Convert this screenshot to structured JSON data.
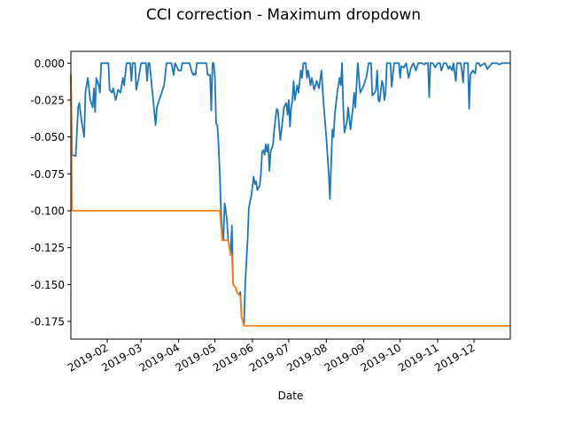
{
  "chart_data": {
    "type": "line",
    "title": "CCI correction - Maximum dropdown",
    "xlabel": "Date",
    "ylabel": "",
    "x_range": [
      "2019-01-02",
      "2019-12-31"
    ],
    "ylim": [
      -0.187,
      0.008
    ],
    "x_ticks": [
      "2019-02",
      "2019-03",
      "2019-04",
      "2019-05",
      "2019-06",
      "2019-07",
      "2019-08",
      "2019-09",
      "2019-10",
      "2019-11",
      "2019-12"
    ],
    "y_ticks": [
      "0.000",
      "-0.025",
      "-0.050",
      "-0.075",
      "-0.100",
      "-0.125",
      "-0.150",
      "-0.175"
    ],
    "grid": false,
    "colors": {
      "drawdown": "#1f77b4",
      "max_drawdown": "#ff7f0e"
    },
    "series": [
      {
        "key": "drawdown",
        "points": [
          [
            "2019-01-02",
            -0.008
          ],
          [
            "2019-01-03",
            -0.062
          ],
          [
            "2019-01-06",
            -0.063
          ],
          [
            "2019-01-08",
            -0.03
          ],
          [
            "2019-01-09",
            -0.027
          ],
          [
            "2019-01-11",
            -0.04
          ],
          [
            "2019-01-13",
            -0.05
          ],
          [
            "2019-01-14",
            -0.02
          ],
          [
            "2019-01-16",
            -0.01
          ],
          [
            "2019-01-18",
            -0.025
          ],
          [
            "2019-01-20",
            -0.03
          ],
          [
            "2019-01-21",
            -0.017
          ],
          [
            "2019-01-22",
            -0.033
          ],
          [
            "2019-01-23",
            -0.01
          ],
          [
            "2019-01-25",
            -0.015
          ],
          [
            "2019-01-26",
            -0.02
          ],
          [
            "2019-01-27",
            0.0
          ],
          [
            "2019-01-30",
            0.0
          ],
          [
            "2019-02-02",
            0.0
          ],
          [
            "2019-02-03",
            -0.018
          ],
          [
            "2019-02-05",
            -0.02
          ],
          [
            "2019-02-06",
            -0.017
          ],
          [
            "2019-02-08",
            -0.025
          ],
          [
            "2019-02-10",
            -0.018
          ],
          [
            "2019-02-12",
            -0.02
          ],
          [
            "2019-02-14",
            -0.01
          ],
          [
            "2019-02-15",
            -0.015
          ],
          [
            "2019-02-17",
            0.0
          ],
          [
            "2019-02-20",
            0.0
          ],
          [
            "2019-02-21",
            -0.012
          ],
          [
            "2019-02-22",
            0.0
          ],
          [
            "2019-02-24",
            0.0
          ],
          [
            "2019-02-25",
            -0.018
          ],
          [
            "2019-02-27",
            -0.01
          ],
          [
            "2019-03-01",
            0.0
          ],
          [
            "2019-03-05",
            0.0
          ],
          [
            "2019-03-06",
            -0.012
          ],
          [
            "2019-03-07",
            0.0
          ],
          [
            "2019-03-08",
            0.0
          ],
          [
            "2019-03-11",
            -0.025
          ],
          [
            "2019-03-13",
            -0.042
          ],
          [
            "2019-03-14",
            -0.03
          ],
          [
            "2019-03-16",
            -0.025
          ],
          [
            "2019-03-18",
            -0.02
          ],
          [
            "2019-03-20",
            -0.015
          ],
          [
            "2019-03-22",
            0.0
          ],
          [
            "2019-03-26",
            0.0
          ],
          [
            "2019-03-28",
            -0.008
          ],
          [
            "2019-03-29",
            0.0
          ],
          [
            "2019-04-01",
            -0.005
          ],
          [
            "2019-04-03",
            -0.005
          ],
          [
            "2019-04-04",
            0.0
          ],
          [
            "2019-04-10",
            0.0
          ],
          [
            "2019-04-12",
            -0.006
          ],
          [
            "2019-04-13",
            -0.008
          ],
          [
            "2019-04-14",
            -0.007
          ],
          [
            "2019-04-15",
            -0.008
          ],
          [
            "2019-04-16",
            0.0
          ],
          [
            "2019-04-20",
            0.0
          ],
          [
            "2019-04-24",
            0.0
          ],
          [
            "2019-04-25",
            -0.008
          ],
          [
            "2019-04-27",
            -0.008
          ],
          [
            "2019-04-28",
            -0.032
          ],
          [
            "2019-04-29",
            0.0
          ],
          [
            "2019-04-30",
            0.0
          ],
          [
            "2019-05-01",
            -0.01
          ],
          [
            "2019-05-02",
            -0.041
          ],
          [
            "2019-05-03",
            -0.042
          ],
          [
            "2019-05-04",
            -0.055
          ],
          [
            "2019-05-05",
            -0.075
          ],
          [
            "2019-05-06",
            -0.1
          ],
          [
            "2019-05-07",
            -0.115
          ],
          [
            "2019-05-08",
            -0.12
          ],
          [
            "2019-05-09",
            -0.095
          ],
          [
            "2019-05-10",
            -0.1
          ],
          [
            "2019-05-11",
            -0.107
          ],
          [
            "2019-05-12",
            -0.12
          ],
          [
            "2019-05-14",
            -0.13
          ],
          [
            "2019-05-15",
            -0.11
          ],
          [
            "2019-05-16",
            -0.15
          ],
          [
            "2019-05-18",
            -0.152
          ],
          [
            "2019-05-19",
            -0.155
          ],
          [
            "2019-05-21",
            -0.157
          ],
          [
            "2019-05-22",
            -0.155
          ],
          [
            "2019-05-23",
            -0.172
          ],
          [
            "2019-05-25",
            -0.178
          ],
          [
            "2019-05-26",
            -0.15
          ],
          [
            "2019-05-28",
            -0.12
          ],
          [
            "2019-05-29",
            -0.098
          ],
          [
            "2019-05-31",
            -0.09
          ],
          [
            "2019-06-02",
            -0.077
          ],
          [
            "2019-06-03",
            -0.082
          ],
          [
            "2019-06-04",
            -0.08
          ],
          [
            "2019-06-05",
            -0.086
          ],
          [
            "2019-06-07",
            -0.083
          ],
          [
            "2019-06-08",
            -0.075
          ],
          [
            "2019-06-09",
            -0.06
          ],
          [
            "2019-06-10",
            -0.059
          ],
          [
            "2019-06-11",
            -0.062
          ],
          [
            "2019-06-12",
            -0.055
          ],
          [
            "2019-06-13",
            -0.06
          ],
          [
            "2019-06-14",
            -0.055
          ],
          [
            "2019-06-15",
            -0.073
          ],
          [
            "2019-06-16",
            -0.06
          ],
          [
            "2019-06-18",
            -0.055
          ],
          [
            "2019-06-19",
            -0.045
          ],
          [
            "2019-06-21",
            -0.031
          ],
          [
            "2019-06-22",
            -0.032
          ],
          [
            "2019-06-24",
            -0.052
          ],
          [
            "2019-06-25",
            -0.045
          ],
          [
            "2019-06-26",
            -0.038
          ],
          [
            "2019-06-27",
            -0.03
          ],
          [
            "2019-06-29",
            -0.027
          ],
          [
            "2019-06-30",
            -0.035
          ],
          [
            "2019-07-01",
            -0.025
          ],
          [
            "2019-07-02",
            -0.043
          ],
          [
            "2019-07-03",
            -0.03
          ],
          [
            "2019-07-04",
            -0.025
          ],
          [
            "2019-07-05",
            -0.012
          ],
          [
            "2019-07-06",
            -0.025
          ],
          [
            "2019-07-08",
            -0.015
          ],
          [
            "2019-07-09",
            -0.02
          ],
          [
            "2019-07-11",
            -0.005
          ],
          [
            "2019-07-12",
            -0.01
          ],
          [
            "2019-07-13",
            0.0
          ],
          [
            "2019-07-15",
            0.0
          ],
          [
            "2019-07-16",
            -0.01
          ],
          [
            "2019-07-17",
            -0.005
          ],
          [
            "2019-07-19",
            -0.015
          ],
          [
            "2019-07-20",
            -0.01
          ],
          [
            "2019-07-22",
            -0.018
          ],
          [
            "2019-07-24",
            -0.012
          ],
          [
            "2019-07-26",
            -0.017
          ],
          [
            "2019-07-28",
            -0.005
          ],
          [
            "2019-07-30",
            -0.03
          ],
          [
            "2019-08-01",
            -0.05
          ],
          [
            "2019-08-03",
            -0.075
          ],
          [
            "2019-08-04",
            -0.092
          ],
          [
            "2019-08-06",
            -0.045
          ],
          [
            "2019-08-07",
            -0.05
          ],
          [
            "2019-08-08",
            -0.035
          ],
          [
            "2019-08-10",
            -0.02
          ],
          [
            "2019-08-12",
            -0.01
          ],
          [
            "2019-08-13",
            -0.015
          ],
          [
            "2019-08-14",
            0.0
          ],
          [
            "2019-08-15",
            -0.03
          ],
          [
            "2019-08-16",
            -0.047
          ],
          [
            "2019-08-18",
            -0.04
          ],
          [
            "2019-08-19",
            -0.03
          ],
          [
            "2019-08-21",
            -0.045
          ],
          [
            "2019-08-23",
            -0.03
          ],
          [
            "2019-08-24",
            -0.02
          ],
          [
            "2019-08-25",
            -0.03
          ],
          [
            "2019-08-27",
            0.0
          ],
          [
            "2019-08-29",
            -0.02
          ],
          [
            "2019-09-01",
            -0.015
          ],
          [
            "2019-09-02",
            -0.012
          ],
          [
            "2019-09-03",
            -0.01
          ],
          [
            "2019-09-05",
            0.0
          ],
          [
            "2019-09-07",
            0.0
          ],
          [
            "2019-09-08",
            -0.022
          ],
          [
            "2019-09-10",
            -0.02
          ],
          [
            "2019-09-11",
            -0.018
          ],
          [
            "2019-09-12",
            -0.005
          ],
          [
            "2019-09-13",
            -0.025
          ],
          [
            "2019-09-14",
            -0.026
          ],
          [
            "2019-09-16",
            -0.012
          ],
          [
            "2019-09-17",
            -0.015
          ],
          [
            "2019-09-18",
            -0.025
          ],
          [
            "2019-09-19",
            -0.02
          ],
          [
            "2019-09-20",
            0.0
          ],
          [
            "2019-09-23",
            0.0
          ],
          [
            "2019-09-24",
            -0.016
          ],
          [
            "2019-09-26",
            0.0
          ],
          [
            "2019-09-30",
            0.0
          ],
          [
            "2019-10-01",
            -0.01
          ],
          [
            "2019-10-02",
            -0.002
          ],
          [
            "2019-10-04",
            -0.003
          ],
          [
            "2019-10-06",
            0.0
          ],
          [
            "2019-10-08",
            -0.01
          ],
          [
            "2019-10-10",
            -0.003
          ],
          [
            "2019-10-12",
            0.0
          ],
          [
            "2019-10-14",
            -0.005
          ],
          [
            "2019-10-16",
            0.0
          ],
          [
            "2019-10-19",
            0.0
          ],
          [
            "2019-10-21",
            -0.001
          ],
          [
            "2019-10-22",
            0.0
          ],
          [
            "2019-10-24",
            0.0
          ],
          [
            "2019-10-25",
            -0.023
          ],
          [
            "2019-10-26",
            0.0
          ],
          [
            "2019-10-28",
            0.0
          ],
          [
            "2019-10-30",
            -0.003
          ],
          [
            "2019-11-01",
            0.0
          ],
          [
            "2019-11-03",
            0.0
          ],
          [
            "2019-11-04",
            -0.005
          ],
          [
            "2019-11-05",
            -0.003
          ],
          [
            "2019-11-06",
            0.0
          ],
          [
            "2019-11-08",
            0.0
          ],
          [
            "2019-11-10",
            -0.004
          ],
          [
            "2019-11-11",
            -0.002
          ],
          [
            "2019-11-13",
            -0.005
          ],
          [
            "2019-11-14",
            0.0
          ],
          [
            "2019-11-16",
            -0.012
          ],
          [
            "2019-11-17",
            0.0
          ],
          [
            "2019-11-20",
            0.0
          ],
          [
            "2019-11-21",
            -0.005
          ],
          [
            "2019-11-22",
            -0.013
          ],
          [
            "2019-11-23",
            0.0
          ],
          [
            "2019-11-26",
            0.0
          ],
          [
            "2019-11-27",
            -0.031
          ],
          [
            "2019-11-28",
            -0.008
          ],
          [
            "2019-11-30",
            -0.005
          ],
          [
            "2019-12-02",
            -0.007
          ],
          [
            "2019-12-03",
            0.0
          ],
          [
            "2019-12-05",
            0.0
          ],
          [
            "2019-12-06",
            -0.002
          ],
          [
            "2019-12-08",
            -0.001
          ],
          [
            "2019-12-10",
            0.0
          ],
          [
            "2019-12-12",
            -0.004
          ],
          [
            "2019-12-14",
            -0.002
          ],
          [
            "2019-12-16",
            0.0
          ],
          [
            "2019-12-20",
            0.0
          ],
          [
            "2019-12-22",
            -0.001
          ],
          [
            "2019-12-24",
            0.0
          ],
          [
            "2019-12-31",
            0.0
          ]
        ]
      },
      {
        "key": "max_drawdown",
        "points": [
          [
            "2019-01-02",
            -0.008
          ],
          [
            "2019-01-03",
            -0.1
          ],
          [
            "2019-05-05",
            -0.1
          ],
          [
            "2019-05-06",
            -0.11
          ],
          [
            "2019-05-07",
            -0.12
          ],
          [
            "2019-05-12",
            -0.12
          ],
          [
            "2019-05-14",
            -0.13
          ],
          [
            "2019-05-15",
            -0.13
          ],
          [
            "2019-05-16",
            -0.15
          ],
          [
            "2019-05-18",
            -0.152
          ],
          [
            "2019-05-19",
            -0.155
          ],
          [
            "2019-05-22",
            -0.158
          ],
          [
            "2019-05-23",
            -0.172
          ],
          [
            "2019-05-25",
            -0.178
          ],
          [
            "2019-12-31",
            -0.178
          ]
        ]
      }
    ]
  }
}
